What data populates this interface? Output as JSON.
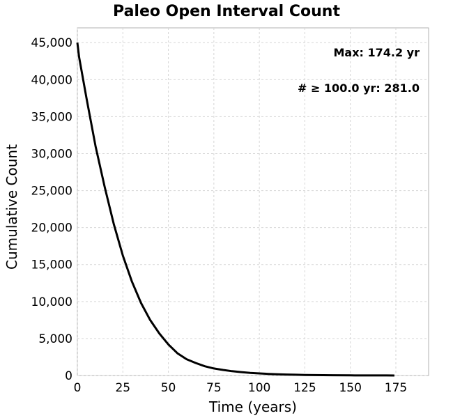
{
  "chart_data": {
    "type": "line",
    "title": "Paleo Open Interval Count",
    "xlabel": "Time (years)",
    "ylabel": "Cumulative Count",
    "xlim": [
      0,
      193
    ],
    "ylim": [
      0,
      47000
    ],
    "x_ticks": [
      0,
      25,
      50,
      75,
      100,
      125,
      150,
      175
    ],
    "x_tick_labels": [
      "0",
      "25",
      "50",
      "75",
      "100",
      "125",
      "150",
      "175"
    ],
    "y_ticks": [
      0,
      5000,
      10000,
      15000,
      20000,
      25000,
      30000,
      35000,
      40000,
      45000
    ],
    "y_tick_labels": [
      "0",
      "5,000",
      "10,000",
      "15,000",
      "20,000",
      "25,000",
      "30,000",
      "35,000",
      "40,000",
      "45,000"
    ],
    "grid": true,
    "annotations": [
      "Max: 174.2 yr",
      "# ≥ 100.0 yr: 281.0"
    ],
    "series": [
      {
        "x": [
          0,
          1,
          5,
          10,
          15,
          20,
          25,
          30,
          35,
          40,
          45,
          50,
          55,
          60,
          65,
          70,
          75,
          80,
          85,
          90,
          95,
          100,
          105,
          110,
          115,
          120,
          125,
          130,
          140,
          150,
          160,
          170,
          174.2
        ],
        "y": [
          45000,
          43000,
          37500,
          31000,
          25500,
          20500,
          16200,
          12700,
          9800,
          7500,
          5700,
          4200,
          3000,
          2200,
          1700,
          1250,
          950,
          750,
          580,
          460,
          360,
          281,
          220,
          170,
          130,
          100,
          75,
          55,
          35,
          20,
          10,
          5,
          1
        ]
      }
    ]
  }
}
